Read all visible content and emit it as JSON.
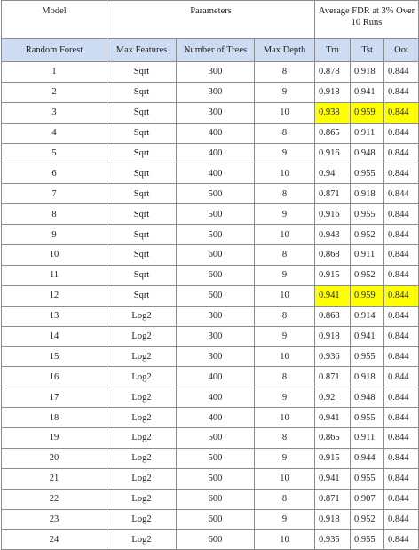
{
  "header": {
    "model": "Model",
    "parameters": "Parameters",
    "fdr": "Average FDR at 3% Over 10 Runs"
  },
  "subheader": {
    "model_name": "Random Forest",
    "max_features": "Max Features",
    "num_trees": "Number of Trees",
    "max_depth": "Max Depth",
    "trn": "Trn",
    "tst": "Tst",
    "oot": "Oot"
  },
  "highlight_color": "#ffff00",
  "subheader_color": "#cddcf3",
  "rows": [
    {
      "id": "1",
      "features": "Sqrt",
      "trees": "300",
      "depth": "8",
      "trn": "0.878",
      "tst": "0.918",
      "oot": "0.844",
      "highlight": false
    },
    {
      "id": "2",
      "features": "Sqrt",
      "trees": "300",
      "depth": "9",
      "trn": "0.918",
      "tst": "0.941",
      "oot": "0.844",
      "highlight": false
    },
    {
      "id": "3",
      "features": "Sqrt",
      "trees": "300",
      "depth": "10",
      "trn": "0.938",
      "tst": "0.959",
      "oot": "0.844",
      "highlight": true
    },
    {
      "id": "4",
      "features": "Sqrt",
      "trees": "400",
      "depth": "8",
      "trn": "0.865",
      "tst": "0.911",
      "oot": "0.844",
      "highlight": false
    },
    {
      "id": "5",
      "features": "Sqrt",
      "trees": "400",
      "depth": "9",
      "trn": "0.916",
      "tst": "0.948",
      "oot": "0.844",
      "highlight": false
    },
    {
      "id": "6",
      "features": "Sqrt",
      "trees": "400",
      "depth": "10",
      "trn": "0.94",
      "tst": "0.955",
      "oot": "0.844",
      "highlight": false
    },
    {
      "id": "7",
      "features": "Sqrt",
      "trees": "500",
      "depth": "8",
      "trn": "0.871",
      "tst": "0.918",
      "oot": "0.844",
      "highlight": false
    },
    {
      "id": "8",
      "features": "Sqrt",
      "trees": "500",
      "depth": "9",
      "trn": "0.916",
      "tst": "0.955",
      "oot": "0.844",
      "highlight": false
    },
    {
      "id": "9",
      "features": "Sqrt",
      "trees": "500",
      "depth": "10",
      "trn": "0.943",
      "tst": "0.952",
      "oot": "0.844",
      "highlight": false
    },
    {
      "id": "10",
      "features": "Sqrt",
      "trees": "600",
      "depth": "8",
      "trn": "0.868",
      "tst": "0.911",
      "oot": "0.844",
      "highlight": false
    },
    {
      "id": "11",
      "features": "Sqrt",
      "trees": "600",
      "depth": "9",
      "trn": "0.915",
      "tst": "0.952",
      "oot": "0.844",
      "highlight": false
    },
    {
      "id": "12",
      "features": "Sqrt",
      "trees": "600",
      "depth": "10",
      "trn": "0.941",
      "tst": "0.959",
      "oot": "0.844",
      "highlight": true
    },
    {
      "id": "13",
      "features": "Log2",
      "trees": "300",
      "depth": "8",
      "trn": "0.868",
      "tst": "0.914",
      "oot": "0.844",
      "highlight": false
    },
    {
      "id": "14",
      "features": "Log2",
      "trees": "300",
      "depth": "9",
      "trn": "0.918",
      "tst": "0.941",
      "oot": "0.844",
      "highlight": false
    },
    {
      "id": "15",
      "features": "Log2",
      "trees": "300",
      "depth": "10",
      "trn": "0.936",
      "tst": "0.955",
      "oot": "0.844",
      "highlight": false
    },
    {
      "id": "16",
      "features": "Log2",
      "trees": "400",
      "depth": "8",
      "trn": "0.871",
      "tst": "0.918",
      "oot": "0.844",
      "highlight": false
    },
    {
      "id": "17",
      "features": "Log2",
      "trees": "400",
      "depth": "9",
      "trn": "0.92",
      "tst": "0.948",
      "oot": "0.844",
      "highlight": false
    },
    {
      "id": "18",
      "features": "Log2",
      "trees": "400",
      "depth": "10",
      "trn": "0.941",
      "tst": "0.955",
      "oot": "0.844",
      "highlight": false
    },
    {
      "id": "19",
      "features": "Log2",
      "trees": "500",
      "depth": "8",
      "trn": "0.865",
      "tst": "0.911",
      "oot": "0.844",
      "highlight": false
    },
    {
      "id": "20",
      "features": "Log2",
      "trees": "500",
      "depth": "9",
      "trn": "0.915",
      "tst": "0.944",
      "oot": "0.844",
      "highlight": false
    },
    {
      "id": "21",
      "features": "Log2",
      "trees": "500",
      "depth": "10",
      "trn": "0.941",
      "tst": "0.955",
      "oot": "0.844",
      "highlight": false
    },
    {
      "id": "22",
      "features": "Log2",
      "trees": "600",
      "depth": "8",
      "trn": "0.871",
      "tst": "0.907",
      "oot": "0.844",
      "highlight": false
    },
    {
      "id": "23",
      "features": "Log2",
      "trees": "600",
      "depth": "9",
      "trn": "0.918",
      "tst": "0.952",
      "oot": "0.844",
      "highlight": false
    },
    {
      "id": "24",
      "features": "Log2",
      "trees": "600",
      "depth": "10",
      "trn": "0.935",
      "tst": "0.955",
      "oot": "0.844",
      "highlight": false
    }
  ]
}
